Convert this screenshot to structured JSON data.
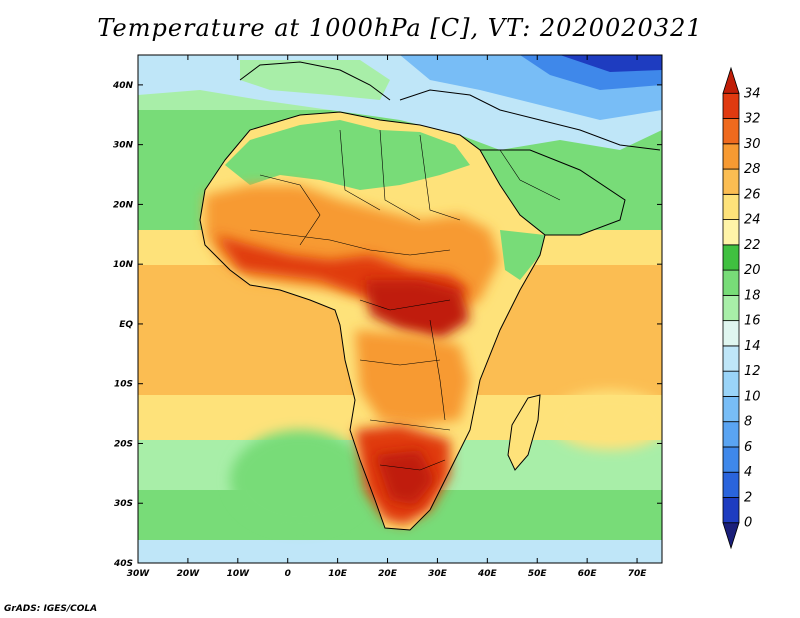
{
  "title": "Temperature at 1000hPa [C], VT: 2020020321",
  "credit": "GrADS: IGES/COLA",
  "map": {
    "lon_range": [
      -30,
      75
    ],
    "lat_range": [
      -40,
      45
    ],
    "lon_ticks": [
      {
        "value": -30,
        "label": "30W"
      },
      {
        "value": -20,
        "label": "20W"
      },
      {
        "value": -10,
        "label": "10W"
      },
      {
        "value": 0,
        "label": "0"
      },
      {
        "value": 10,
        "label": "10E"
      },
      {
        "value": 20,
        "label": "20E"
      },
      {
        "value": 30,
        "label": "30E"
      },
      {
        "value": 40,
        "label": "40E"
      },
      {
        "value": 50,
        "label": "50E"
      },
      {
        "value": 60,
        "label": "60E"
      },
      {
        "value": 70,
        "label": "70E"
      }
    ],
    "lat_ticks": [
      {
        "value": 40,
        "label": "40N"
      },
      {
        "value": 30,
        "label": "30N"
      },
      {
        "value": 20,
        "label": "20N"
      },
      {
        "value": 10,
        "label": "10N"
      },
      {
        "value": 0,
        "label": "EQ"
      },
      {
        "value": -10,
        "label": "10S"
      },
      {
        "value": -20,
        "label": "20S"
      },
      {
        "value": -30,
        "label": "30S"
      },
      {
        "value": -40,
        "label": "40S"
      }
    ]
  },
  "colorbar": {
    "levels": [
      "0",
      "2",
      "4",
      "6",
      "8",
      "10",
      "12",
      "14",
      "16",
      "18",
      "20",
      "22",
      "24",
      "26",
      "28",
      "30",
      "32",
      "34"
    ],
    "colors": [
      "#1a1f7a",
      "#1e3cc0",
      "#2a64dc",
      "#3f88ea",
      "#5aa4f2",
      "#78bdf6",
      "#9ad4f8",
      "#bfe6f8",
      "#e0f6f0",
      "#a8eea8",
      "#78dc78",
      "#40c040",
      "#fff4a8",
      "#fee27a",
      "#fbbd52",
      "#f79a32",
      "#ef6a1e",
      "#e03a10",
      "#c01e08"
    ]
  },
  "colors": {
    "ocean_warm": "#fbbd52",
    "ocean_mid": "#fee27a",
    "ocean_cool": "#78dc78",
    "land_hot": "#e03a10",
    "land_warm": "#f79a32",
    "border": "#000000"
  }
}
